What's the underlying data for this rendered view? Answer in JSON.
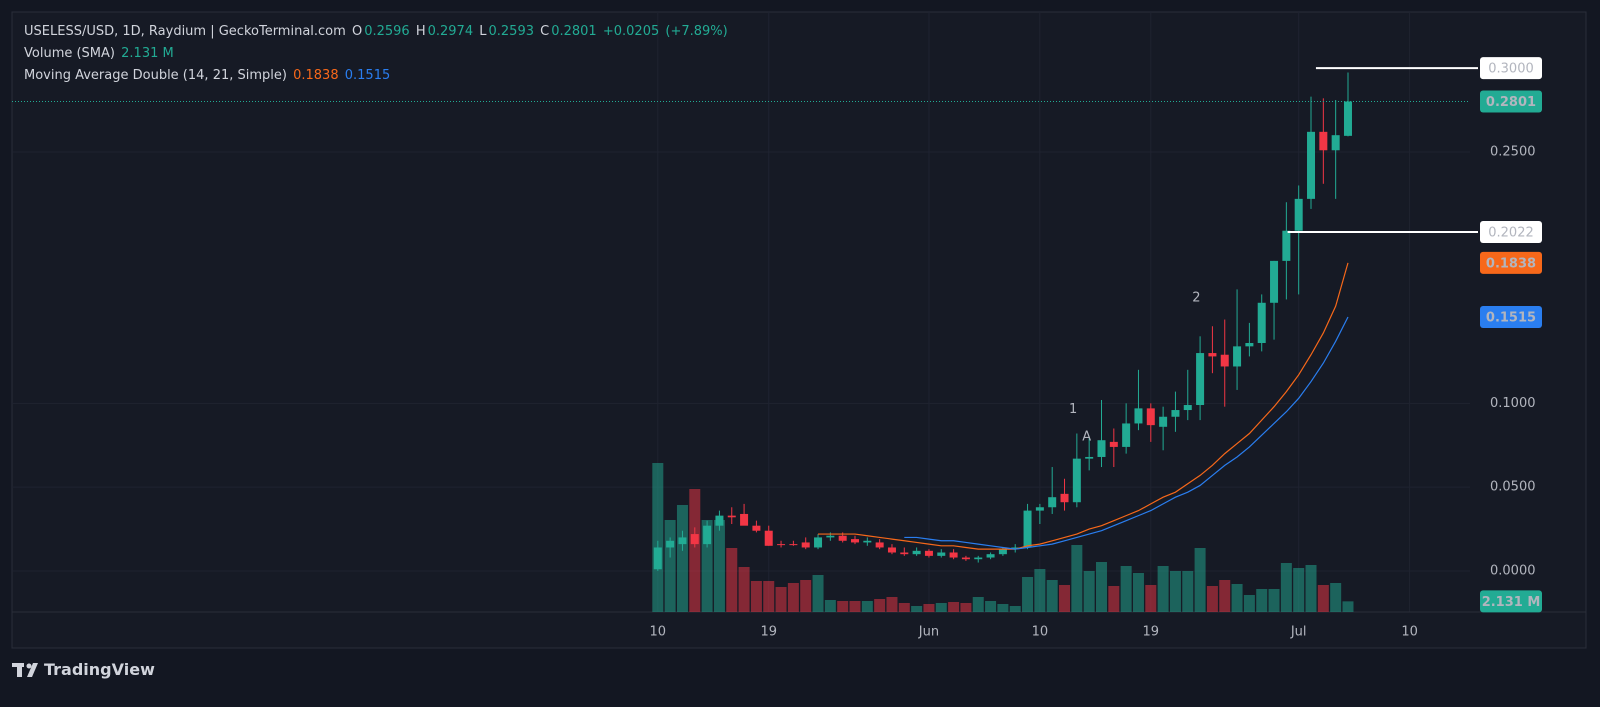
{
  "chart_data": {
    "type": "candlestick",
    "title": "USELESS/USD, 1D, Raydium | GeckoTerminal.com",
    "ohlc_labels": [
      "O",
      "H",
      "L",
      "C"
    ],
    "change": "+0.0205",
    "change_pct": "(+7.89%)",
    "x": [
      0,
      1,
      2,
      3,
      4,
      5,
      6,
      7,
      8,
      9,
      10,
      11,
      12,
      13,
      14,
      15,
      16,
      17,
      18,
      19,
      20,
      21,
      22,
      23,
      24,
      25,
      26,
      27,
      28,
      29,
      30,
      31,
      32,
      33,
      34,
      35,
      36,
      37,
      38,
      39,
      40,
      41,
      42,
      43,
      44,
      45,
      46,
      47,
      48,
      49,
      50,
      51,
      52,
      53,
      54,
      55,
      56
    ],
    "xlim": [
      -52.4,
      65.9
    ],
    "xticks": [
      {
        "value": 0,
        "label": "10"
      },
      {
        "value": 9,
        "label": "19"
      },
      {
        "value": 22,
        "label": "Jun"
      },
      {
        "value": 31,
        "label": "10"
      },
      {
        "value": 40,
        "label": "19"
      },
      {
        "value": 52,
        "label": "Jul"
      },
      {
        "value": 61,
        "label": "10"
      }
    ],
    "ylim": [
      -0.0245,
      0.3335
    ],
    "yticks": [
      {
        "value": 0,
        "label": "0.0000"
      },
      {
        "value": 0.05,
        "label": "0.0500"
      },
      {
        "value": 0.1,
        "label": "0.1000"
      },
      {
        "value": 0.25,
        "label": "0.2500"
      }
    ],
    "y2lim": [
      0,
      120000000
    ],
    "grid": true,
    "up_color": "#22ab94",
    "down_color": "#f23645",
    "open": [
      0.001,
      0.014,
      0.016,
      0.022,
      0.016,
      0.027,
      0.033,
      0.034,
      0.027,
      0.024,
      0.016,
      0.016,
      0.017,
      0.014,
      0.02,
      0.021,
      0.019,
      0.017,
      0.017,
      0.014,
      0.011,
      0.01,
      0.012,
      0.009,
      0.011,
      0.008,
      0.007,
      0.008,
      0.01,
      0.013,
      0.014,
      0.036,
      0.038,
      0.046,
      0.041,
      0.067,
      0.068,
      0.077,
      0.074,
      0.088,
      0.097,
      0.086,
      0.092,
      0.096,
      0.099,
      0.13,
      0.129,
      0.122,
      0.134,
      0.136,
      0.16,
      0.185,
      0.203,
      0.222,
      0.262,
      0.251,
      0.2596
    ],
    "high": [
      0.018,
      0.02,
      0.024,
      0.026,
      0.03,
      0.036,
      0.038,
      0.04,
      0.03,
      0.027,
      0.018,
      0.018,
      0.02,
      0.022,
      0.023,
      0.023,
      0.021,
      0.02,
      0.019,
      0.016,
      0.014,
      0.014,
      0.013,
      0.013,
      0.013,
      0.009,
      0.009,
      0.011,
      0.014,
      0.016,
      0.04,
      0.04,
      0.062,
      0.055,
      0.082,
      0.08,
      0.102,
      0.085,
      0.1,
      0.12,
      0.1,
      0.098,
      0.107,
      0.12,
      0.14,
      0.146,
      0.15,
      0.168,
      0.148,
      0.165,
      0.185,
      0.22,
      0.23,
      0.283,
      0.282,
      0.281,
      0.2974
    ],
    "low": [
      0.0,
      0.008,
      0.012,
      0.014,
      0.014,
      0.024,
      0.028,
      0.028,
      0.023,
      0.015,
      0.014,
      0.015,
      0.013,
      0.013,
      0.018,
      0.017,
      0.016,
      0.015,
      0.013,
      0.01,
      0.009,
      0.009,
      0.008,
      0.008,
      0.007,
      0.006,
      0.005,
      0.007,
      0.009,
      0.011,
      0.013,
      0.028,
      0.034,
      0.036,
      0.038,
      0.06,
      0.062,
      0.062,
      0.07,
      0.084,
      0.077,
      0.072,
      0.083,
      0.09,
      0.09,
      0.118,
      0.098,
      0.108,
      0.128,
      0.131,
      0.138,
      0.162,
      0.165,
      0.216,
      0.231,
      0.222,
      0.2593
    ],
    "close": [
      0.014,
      0.018,
      0.02,
      0.016,
      0.027,
      0.033,
      0.032,
      0.027,
      0.024,
      0.015,
      0.0155,
      0.0155,
      0.014,
      0.02,
      0.021,
      0.018,
      0.017,
      0.018,
      0.014,
      0.011,
      0.01,
      0.012,
      0.009,
      0.011,
      0.008,
      0.007,
      0.008,
      0.01,
      0.013,
      0.014,
      0.036,
      0.038,
      0.044,
      0.041,
      0.067,
      0.068,
      0.078,
      0.074,
      0.088,
      0.097,
      0.087,
      0.092,
      0.096,
      0.099,
      0.13,
      0.128,
      0.122,
      0.134,
      0.136,
      0.16,
      0.185,
      0.203,
      0.222,
      0.262,
      0.251,
      0.26,
      0.2801
    ],
    "volume": {
      "name": "Volume (SMA)",
      "last_label": "2.131 M",
      "values": [
        29800000,
        18400000,
        21400000,
        24600000,
        18400000,
        18400000,
        12800000,
        9000000,
        6200000,
        6200000,
        5000000,
        5800000,
        6400000,
        7400000,
        2400000,
        2200000,
        2200000,
        2200000,
        2600000,
        3000000,
        1800000,
        1200000,
        1600000,
        1800000,
        2000000,
        1800000,
        3000000,
        2200000,
        1600000,
        1200000,
        7000000,
        8600000,
        6400000,
        5400000,
        13400000,
        8200000,
        10000000,
        5200000,
        9200000,
        7800000,
        5400000,
        9200000,
        8200000,
        8200000,
        12800000,
        5200000,
        6400000,
        5600000,
        3400000,
        4600000,
        4600000,
        9800000,
        8800000,
        9400000,
        5400000,
        5800000,
        2131000
      ]
    },
    "indicator_name": "Moving Average Double (14, 21, Simple)",
    "series": [
      {
        "color": "#f7681a",
        "values": [
          null,
          null,
          null,
          null,
          null,
          null,
          null,
          null,
          null,
          null,
          null,
          null,
          null,
          0.022,
          0.022,
          0.022,
          0.022,
          0.021,
          0.02,
          0.019,
          0.018,
          0.017,
          0.016,
          0.015,
          0.015,
          0.014,
          0.013,
          0.013,
          0.013,
          0.013,
          0.015,
          0.016,
          0.018,
          0.02,
          0.022,
          0.025,
          0.027,
          0.03,
          0.033,
          0.036,
          0.04,
          0.044,
          0.047,
          0.052,
          0.057,
          0.063,
          0.07,
          0.076,
          0.082,
          0.09,
          0.098,
          0.107,
          0.117,
          0.129,
          0.142,
          0.158,
          0.1838
        ]
      },
      {
        "color": "#2a7ef0",
        "values": [
          null,
          null,
          null,
          null,
          null,
          null,
          null,
          null,
          null,
          null,
          null,
          null,
          null,
          null,
          null,
          null,
          null,
          null,
          null,
          null,
          0.02,
          0.02,
          0.019,
          0.018,
          0.018,
          0.017,
          0.016,
          0.015,
          0.014,
          0.013,
          0.014,
          0.015,
          0.016,
          0.018,
          0.02,
          0.022,
          0.024,
          0.027,
          0.03,
          0.033,
          0.036,
          0.04,
          0.044,
          0.047,
          0.051,
          0.057,
          0.063,
          0.068,
          0.074,
          0.081,
          0.088,
          0.095,
          0.103,
          0.113,
          0.124,
          0.137,
          0.1515
        ]
      }
    ],
    "price_lines": [
      {
        "value": 0.3,
        "label": "0.3000",
        "x_start": 53.4
      },
      {
        "value": 0.2022,
        "label": "0.2022",
        "x_start": 51.1
      }
    ],
    "annotations": [
      {
        "text": "1",
        "x": 33.7,
        "y": 0.0963
      },
      {
        "text": "A",
        "x": 34.8,
        "y": 0.08
      },
      {
        "text": "2",
        "x": 43.7,
        "y": 0.163
      }
    ]
  },
  "footer": {
    "brand": "TradingView"
  }
}
